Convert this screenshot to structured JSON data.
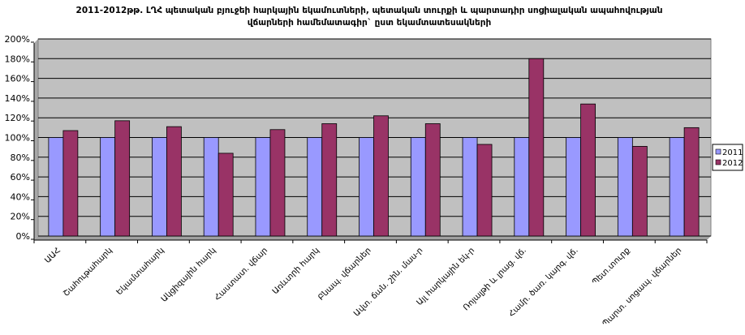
{
  "chart_data": {
    "type": "bar",
    "title_line1": "2011-2012թթ. ԼՂՀ պետական բյուջեի հարկային եկամուտների, պետական տուրքի և պարտադիր սոցիալական ապահովության",
    "title_line2": "վճարների  համեմատագիր` ըստ եկամտատեսակների",
    "categories": [
      "ԱԱՀ",
      "Շահութահարկ",
      "Եկամտահարկ",
      "Ակցիզային հարկ",
      "Հաստատ. վճար",
      "Առևտրի հարկ",
      "Բնապ. վճարներ",
      "Ավտ. ճան. շին. մաս-ր",
      "Այլ հարկային եկ-ր",
      "Ռոյալթի և լրաց. վճ.",
      "Համր. ծառ. կարգ. վճ.",
      "Պետ.տուրք",
      "Պարտ. սոցապ. վճարներ"
    ],
    "series": [
      {
        "name": "2011",
        "color": "#9999ff",
        "values": [
          100,
          100,
          100,
          100,
          100,
          100,
          100,
          100,
          100,
          100,
          100,
          100,
          100
        ]
      },
      {
        "name": "2012",
        "color": "#993366",
        "values": [
          107,
          117,
          111,
          84,
          108,
          114,
          122,
          114,
          93,
          180,
          134,
          91,
          110
        ]
      }
    ],
    "y_ticks": [
      "0%",
      "20%",
      "40%",
      "60%",
      "80%",
      "100%",
      "120%",
      "140%",
      "160%",
      "180%",
      "200%"
    ],
    "ylim": [
      0,
      200
    ],
    "grid": true,
    "legend_position": "right"
  }
}
